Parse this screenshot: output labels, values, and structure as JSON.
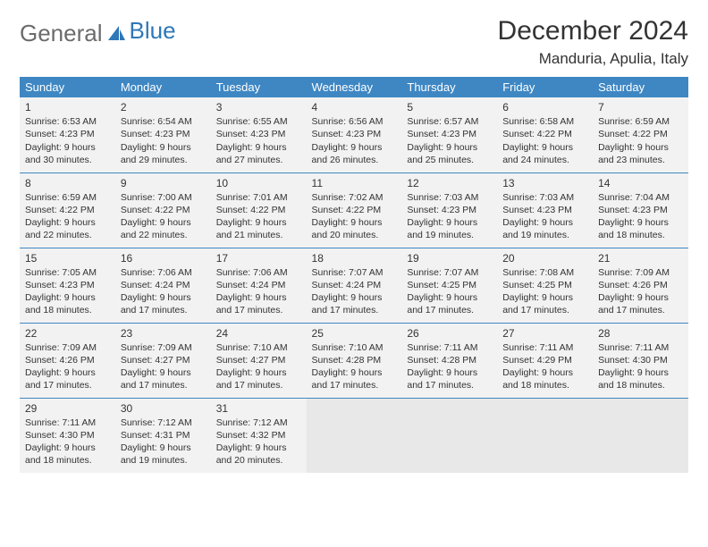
{
  "logo": {
    "word1": "General",
    "word2": "Blue"
  },
  "title": "December 2024",
  "location": "Manduria, Apulia, Italy",
  "colors": {
    "header_bg": "#3e87c3",
    "header_text": "#ffffff",
    "cell_bg": "#f2f2f2",
    "empty_bg": "#e8e8e8",
    "rule": "#3e87c3",
    "text": "#333333",
    "logo_gray": "#6b6b6b",
    "logo_blue": "#2e77b8"
  },
  "weekdays": [
    "Sunday",
    "Monday",
    "Tuesday",
    "Wednesday",
    "Thursday",
    "Friday",
    "Saturday"
  ],
  "weeks": [
    [
      {
        "n": "1",
        "sr": "Sunrise: 6:53 AM",
        "ss": "Sunset: 4:23 PM",
        "d1": "Daylight: 9 hours",
        "d2": "and 30 minutes."
      },
      {
        "n": "2",
        "sr": "Sunrise: 6:54 AM",
        "ss": "Sunset: 4:23 PM",
        "d1": "Daylight: 9 hours",
        "d2": "and 29 minutes."
      },
      {
        "n": "3",
        "sr": "Sunrise: 6:55 AM",
        "ss": "Sunset: 4:23 PM",
        "d1": "Daylight: 9 hours",
        "d2": "and 27 minutes."
      },
      {
        "n": "4",
        "sr": "Sunrise: 6:56 AM",
        "ss": "Sunset: 4:23 PM",
        "d1": "Daylight: 9 hours",
        "d2": "and 26 minutes."
      },
      {
        "n": "5",
        "sr": "Sunrise: 6:57 AM",
        "ss": "Sunset: 4:23 PM",
        "d1": "Daylight: 9 hours",
        "d2": "and 25 minutes."
      },
      {
        "n": "6",
        "sr": "Sunrise: 6:58 AM",
        "ss": "Sunset: 4:22 PM",
        "d1": "Daylight: 9 hours",
        "d2": "and 24 minutes."
      },
      {
        "n": "7",
        "sr": "Sunrise: 6:59 AM",
        "ss": "Sunset: 4:22 PM",
        "d1": "Daylight: 9 hours",
        "d2": "and 23 minutes."
      }
    ],
    [
      {
        "n": "8",
        "sr": "Sunrise: 6:59 AM",
        "ss": "Sunset: 4:22 PM",
        "d1": "Daylight: 9 hours",
        "d2": "and 22 minutes."
      },
      {
        "n": "9",
        "sr": "Sunrise: 7:00 AM",
        "ss": "Sunset: 4:22 PM",
        "d1": "Daylight: 9 hours",
        "d2": "and 22 minutes."
      },
      {
        "n": "10",
        "sr": "Sunrise: 7:01 AM",
        "ss": "Sunset: 4:22 PM",
        "d1": "Daylight: 9 hours",
        "d2": "and 21 minutes."
      },
      {
        "n": "11",
        "sr": "Sunrise: 7:02 AM",
        "ss": "Sunset: 4:22 PM",
        "d1": "Daylight: 9 hours",
        "d2": "and 20 minutes."
      },
      {
        "n": "12",
        "sr": "Sunrise: 7:03 AM",
        "ss": "Sunset: 4:23 PM",
        "d1": "Daylight: 9 hours",
        "d2": "and 19 minutes."
      },
      {
        "n": "13",
        "sr": "Sunrise: 7:03 AM",
        "ss": "Sunset: 4:23 PM",
        "d1": "Daylight: 9 hours",
        "d2": "and 19 minutes."
      },
      {
        "n": "14",
        "sr": "Sunrise: 7:04 AM",
        "ss": "Sunset: 4:23 PM",
        "d1": "Daylight: 9 hours",
        "d2": "and 18 minutes."
      }
    ],
    [
      {
        "n": "15",
        "sr": "Sunrise: 7:05 AM",
        "ss": "Sunset: 4:23 PM",
        "d1": "Daylight: 9 hours",
        "d2": "and 18 minutes."
      },
      {
        "n": "16",
        "sr": "Sunrise: 7:06 AM",
        "ss": "Sunset: 4:24 PM",
        "d1": "Daylight: 9 hours",
        "d2": "and 17 minutes."
      },
      {
        "n": "17",
        "sr": "Sunrise: 7:06 AM",
        "ss": "Sunset: 4:24 PM",
        "d1": "Daylight: 9 hours",
        "d2": "and 17 minutes."
      },
      {
        "n": "18",
        "sr": "Sunrise: 7:07 AM",
        "ss": "Sunset: 4:24 PM",
        "d1": "Daylight: 9 hours",
        "d2": "and 17 minutes."
      },
      {
        "n": "19",
        "sr": "Sunrise: 7:07 AM",
        "ss": "Sunset: 4:25 PM",
        "d1": "Daylight: 9 hours",
        "d2": "and 17 minutes."
      },
      {
        "n": "20",
        "sr": "Sunrise: 7:08 AM",
        "ss": "Sunset: 4:25 PM",
        "d1": "Daylight: 9 hours",
        "d2": "and 17 minutes."
      },
      {
        "n": "21",
        "sr": "Sunrise: 7:09 AM",
        "ss": "Sunset: 4:26 PM",
        "d1": "Daylight: 9 hours",
        "d2": "and 17 minutes."
      }
    ],
    [
      {
        "n": "22",
        "sr": "Sunrise: 7:09 AM",
        "ss": "Sunset: 4:26 PM",
        "d1": "Daylight: 9 hours",
        "d2": "and 17 minutes."
      },
      {
        "n": "23",
        "sr": "Sunrise: 7:09 AM",
        "ss": "Sunset: 4:27 PM",
        "d1": "Daylight: 9 hours",
        "d2": "and 17 minutes."
      },
      {
        "n": "24",
        "sr": "Sunrise: 7:10 AM",
        "ss": "Sunset: 4:27 PM",
        "d1": "Daylight: 9 hours",
        "d2": "and 17 minutes."
      },
      {
        "n": "25",
        "sr": "Sunrise: 7:10 AM",
        "ss": "Sunset: 4:28 PM",
        "d1": "Daylight: 9 hours",
        "d2": "and 17 minutes."
      },
      {
        "n": "26",
        "sr": "Sunrise: 7:11 AM",
        "ss": "Sunset: 4:28 PM",
        "d1": "Daylight: 9 hours",
        "d2": "and 17 minutes."
      },
      {
        "n": "27",
        "sr": "Sunrise: 7:11 AM",
        "ss": "Sunset: 4:29 PM",
        "d1": "Daylight: 9 hours",
        "d2": "and 18 minutes."
      },
      {
        "n": "28",
        "sr": "Sunrise: 7:11 AM",
        "ss": "Sunset: 4:30 PM",
        "d1": "Daylight: 9 hours",
        "d2": "and 18 minutes."
      }
    ],
    [
      {
        "n": "29",
        "sr": "Sunrise: 7:11 AM",
        "ss": "Sunset: 4:30 PM",
        "d1": "Daylight: 9 hours",
        "d2": "and 18 minutes."
      },
      {
        "n": "30",
        "sr": "Sunrise: 7:12 AM",
        "ss": "Sunset: 4:31 PM",
        "d1": "Daylight: 9 hours",
        "d2": "and 19 minutes."
      },
      {
        "n": "31",
        "sr": "Sunrise: 7:12 AM",
        "ss": "Sunset: 4:32 PM",
        "d1": "Daylight: 9 hours",
        "d2": "and 20 minutes."
      },
      null,
      null,
      null,
      null
    ]
  ]
}
